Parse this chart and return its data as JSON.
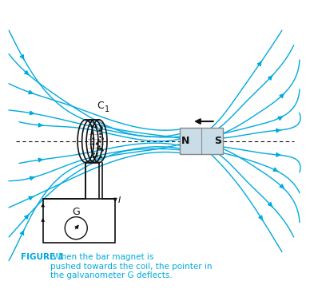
{
  "bg_color": "#ffffff",
  "cyan_color": "#00aadd",
  "dark_color": "#111111",
  "magnet_face_color": "#c8dde8",
  "magnet_edge_color": "#888888",
  "caption_bold": "FIGURE 1",
  "caption_text": " When the bar magnet is\npushed towards the coil, the pointer in\nthe galvanometer G deflects.",
  "caption_color": "#00aadd",
  "coil_label": "C",
  "coil_subscript": "1",
  "current_label": "I",
  "galvano_label": "G"
}
